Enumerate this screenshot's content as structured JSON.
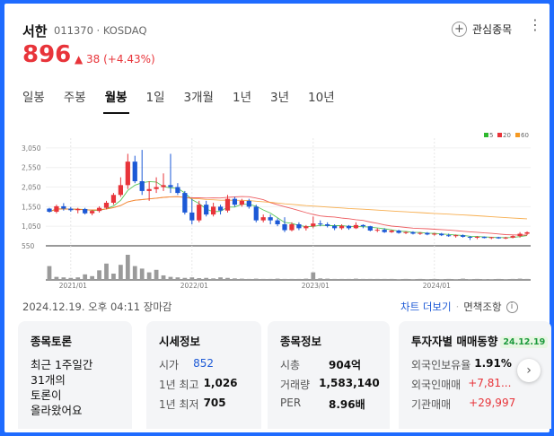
{
  "stock": {
    "name": "서한",
    "code_market": "011370 · KOSDAQ",
    "price": "896",
    "change": "▲ 38 (+4.43%)",
    "favorite_label": "관심종목"
  },
  "tabs": [
    "일봉",
    "주봉",
    "월봉",
    "1일",
    "3개월",
    "1년",
    "3년",
    "10년"
  ],
  "active_tab": "월봉",
  "legend": [
    {
      "label": "5",
      "color": "#2eb82e"
    },
    {
      "label": "20",
      "color": "#e8343a"
    },
    {
      "label": "60",
      "color": "#f59a23"
    }
  ],
  "chart_data": {
    "type": "candlestick",
    "y_ticks": [
      "3,050",
      "2,550",
      "2,050",
      "1,550",
      "1,050",
      "550"
    ],
    "y_tick_values": [
      3050,
      2550,
      2050,
      1550,
      1050,
      550
    ],
    "ylim": [
      550,
      3300
    ],
    "x_ticks": [
      "2021/01",
      "2022/01",
      "2023/01",
      "2024/01"
    ],
    "up_color": "#e8343a",
    "down_color": "#1c59d6",
    "candles": [
      [
        1500,
        1520,
        1400,
        1420
      ],
      [
        1420,
        1600,
        1380,
        1560
      ],
      [
        1560,
        1640,
        1450,
        1500
      ],
      [
        1500,
        1540,
        1420,
        1460
      ],
      [
        1460,
        1520,
        1380,
        1490
      ],
      [
        1490,
        1520,
        1350,
        1380
      ],
      [
        1380,
        1470,
        1330,
        1440
      ],
      [
        1440,
        1560,
        1400,
        1520
      ],
      [
        1520,
        1700,
        1480,
        1650
      ],
      [
        1650,
        1900,
        1600,
        1850
      ],
      [
        1850,
        2300,
        1800,
        2100
      ],
      [
        2100,
        2900,
        2000,
        2700
      ],
      [
        2700,
        2850,
        2150,
        2200
      ],
      [
        2200,
        3000,
        1850,
        1950
      ],
      [
        1950,
        2200,
        1700,
        2000
      ],
      [
        2000,
        2300,
        1900,
        2050
      ],
      [
        2050,
        2400,
        1950,
        2100
      ],
      [
        2100,
        2900,
        1900,
        2050
      ],
      [
        2050,
        2150,
        1850,
        1900
      ],
      [
        1900,
        1950,
        1350,
        1400
      ],
      [
        1400,
        1750,
        1100,
        1200
      ],
      [
        1200,
        1700,
        1150,
        1600
      ],
      [
        1600,
        1700,
        1300,
        1350
      ],
      [
        1350,
        1650,
        1300,
        1550
      ],
      [
        1550,
        1600,
        1350,
        1450
      ],
      [
        1450,
        1850,
        1400,
        1750
      ],
      [
        1750,
        1800,
        1550,
        1600
      ],
      [
        1600,
        1750,
        1550,
        1700
      ],
      [
        1700,
        1750,
        1500,
        1550
      ],
      [
        1550,
        1600,
        1150,
        1200
      ],
      [
        1200,
        1350,
        1150,
        1280
      ],
      [
        1280,
        1350,
        1100,
        1200
      ],
      [
        1200,
        1250,
        1050,
        1100
      ],
      [
        1100,
        1280,
        900,
        950
      ],
      [
        950,
        1150,
        920,
        1100
      ],
      [
        1100,
        1150,
        950,
        1000
      ],
      [
        1000,
        1080,
        940,
        1050
      ],
      [
        1050,
        1300,
        1000,
        1120
      ],
      [
        1120,
        1200,
        1050,
        1100
      ],
      [
        1100,
        1150,
        1020,
        1060
      ],
      [
        1060,
        1100,
        950,
        1000
      ],
      [
        1000,
        1100,
        960,
        1060
      ],
      [
        1060,
        1080,
        960,
        1000
      ],
      [
        1000,
        1150,
        980,
        1080
      ],
      [
        1080,
        1100,
        1000,
        1050
      ],
      [
        1050,
        1060,
        920,
        940
      ],
      [
        940,
        1000,
        900,
        960
      ],
      [
        960,
        1000,
        880,
        900
      ],
      [
        900,
        960,
        880,
        940
      ],
      [
        940,
        960,
        860,
        880
      ],
      [
        880,
        920,
        850,
        900
      ],
      [
        900,
        920,
        840,
        860
      ],
      [
        860,
        900,
        830,
        880
      ],
      [
        880,
        900,
        820,
        840
      ],
      [
        840,
        880,
        810,
        860
      ],
      [
        860,
        880,
        800,
        820
      ],
      [
        820,
        860,
        780,
        800
      ],
      [
        800,
        840,
        760,
        820
      ],
      [
        820,
        840,
        760,
        780
      ],
      [
        780,
        800,
        700,
        760
      ],
      [
        760,
        800,
        720,
        780
      ],
      [
        780,
        790,
        740,
        750
      ],
      [
        750,
        780,
        720,
        770
      ],
      [
        770,
        780,
        730,
        740
      ],
      [
        740,
        780,
        720,
        760
      ],
      [
        760,
        820,
        740,
        800
      ],
      [
        800,
        900,
        760,
        858
      ],
      [
        858,
        920,
        820,
        896
      ]
    ],
    "volumes": [
      0.55,
      0.12,
      0.1,
      0.08,
      0.1,
      0.22,
      0.15,
      0.38,
      0.65,
      0.25,
      0.6,
      1.0,
      0.55,
      0.45,
      0.3,
      0.4,
      0.18,
      0.12,
      0.1,
      0.08,
      0.1,
      0.07,
      0.08,
      0.06,
      0.1,
      0.08,
      0.06,
      0.05,
      0.04,
      0.05,
      0.04,
      0.04,
      0.05,
      0.04,
      0.04,
      0.04,
      0.05,
      0.3,
      0.06,
      0.05,
      0.04,
      0.04,
      0.04,
      0.05,
      0.04,
      0.04,
      0.04,
      0.04,
      0.04,
      0.03,
      0.04,
      0.03,
      0.04,
      0.03,
      0.04,
      0.03,
      0.04,
      0.03,
      0.05,
      0.03,
      0.04,
      0.03,
      0.03,
      0.04,
      0.03,
      0.04,
      0.05,
      0.04
    ]
  },
  "timestamp": "2024.12.19. 오후 04:11 장마감",
  "links": {
    "chart_more": "차트 더보기",
    "disclaimer": "면책조항"
  },
  "cards": {
    "discussion": {
      "title": "종목토론",
      "lines": [
        "최근 1주일간",
        "31개의",
        "토론이",
        "올라왔어요"
      ]
    },
    "market": {
      "title": "시세정보",
      "rows": [
        {
          "k": "시가",
          "v": "852"
        },
        {
          "k": "1년 최고",
          "v": "1,026"
        },
        {
          "k": "1년 최저",
          "v": "705"
        }
      ]
    },
    "info": {
      "title": "종목정보",
      "rows": [
        {
          "k": "시총",
          "v": "904억"
        },
        {
          "k": "거래량",
          "v": "1,583,140"
        },
        {
          "k": "PER",
          "v": "8.96배"
        }
      ]
    },
    "investors": {
      "title": "투자자별 매매동향",
      "badge": "24.12.19",
      "rows": [
        {
          "k": "외국인보유율",
          "v": "1.91%"
        },
        {
          "k": "외국인매매",
          "v": "+7,81..."
        },
        {
          "k": "기관매매",
          "v": "+29,997"
        }
      ]
    }
  }
}
